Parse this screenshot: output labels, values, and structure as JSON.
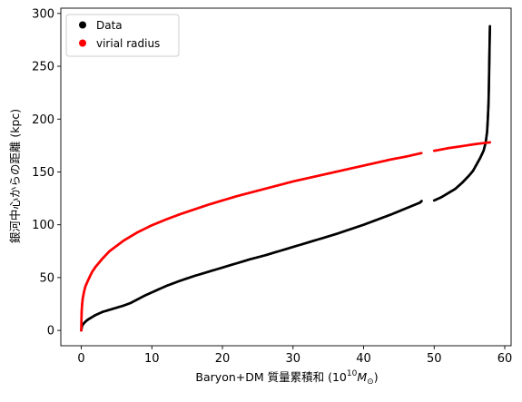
{
  "chart_data": {
    "type": "scatter",
    "xlabel": "Baryon+DM 質量累積和 (10",
    "xlabel_exp": "10",
    "xlabel_tail": "M",
    "xlabel_sub": "⊙",
    "xlabel_close": ")",
    "ylabel": "銀河中心からの距離 (kpc)",
    "xlim": [
      -2.9,
      60.9
    ],
    "ylim": [
      -14.5,
      305
    ],
    "xticks": [
      0,
      10,
      20,
      30,
      40,
      50,
      60
    ],
    "yticks": [
      0,
      50,
      100,
      150,
      200,
      250,
      300
    ],
    "legend_position": "upper-left",
    "grid": false,
    "series": [
      {
        "name": "Data",
        "color": "#000000",
        "marker": "dot",
        "points": [
          [
            0.0,
            0
          ],
          [
            0.05,
            2
          ],
          [
            0.1,
            4
          ],
          [
            0.2,
            5.5
          ],
          [
            0.4,
            7
          ],
          [
            0.7,
            9
          ],
          [
            1.0,
            10.5
          ],
          [
            1.5,
            12.5
          ],
          [
            2.0,
            14.5
          ],
          [
            3.0,
            17.5
          ],
          [
            4.0,
            19.5
          ],
          [
            5.0,
            21.5
          ],
          [
            6.0,
            23.5
          ],
          [
            7.0,
            26
          ],
          [
            8.0,
            29.5
          ],
          [
            9.0,
            33
          ],
          [
            10.0,
            36
          ],
          [
            12.0,
            42
          ],
          [
            14.0,
            47
          ],
          [
            16.0,
            51.5
          ],
          [
            18.0,
            55.5
          ],
          [
            20.0,
            59.5
          ],
          [
            22.0,
            63.5
          ],
          [
            24.0,
            67.5
          ],
          [
            26.0,
            71
          ],
          [
            28.0,
            75
          ],
          [
            30.0,
            79
          ],
          [
            32.0,
            83
          ],
          [
            34.0,
            87
          ],
          [
            36.0,
            91
          ],
          [
            38.0,
            95.5
          ],
          [
            40.0,
            100
          ],
          [
            42.0,
            105
          ],
          [
            44.0,
            110
          ],
          [
            46.0,
            115.5
          ],
          [
            48.0,
            121
          ],
          [
            48.3,
            123
          ],
          [
            50.0,
            123
          ],
          [
            51.0,
            126
          ],
          [
            52.0,
            130
          ],
          [
            53.0,
            134
          ],
          [
            54.0,
            140
          ],
          [
            55.0,
            147
          ],
          [
            55.5,
            151
          ],
          [
            56.0,
            157
          ],
          [
            56.5,
            163
          ],
          [
            57.0,
            170
          ],
          [
            57.3,
            178
          ],
          [
            57.5,
            188
          ],
          [
            57.6,
            200
          ],
          [
            57.7,
            215
          ],
          [
            57.75,
            230
          ],
          [
            57.8,
            250
          ],
          [
            57.85,
            270
          ],
          [
            57.9,
            288
          ]
        ]
      },
      {
        "name": "virial radius",
        "color": "#ff0000",
        "marker": "dot",
        "points": [
          [
            0.0,
            0
          ],
          [
            0.02,
            10
          ],
          [
            0.05,
            17
          ],
          [
            0.1,
            23
          ],
          [
            0.2,
            30
          ],
          [
            0.4,
            37
          ],
          [
            0.6,
            42
          ],
          [
            1.0,
            48
          ],
          [
            1.5,
            55
          ],
          [
            2.0,
            60
          ],
          [
            3.0,
            68
          ],
          [
            4.0,
            75
          ],
          [
            5.0,
            80
          ],
          [
            6.0,
            85
          ],
          [
            7.0,
            89
          ],
          [
            8.0,
            93
          ],
          [
            10.0,
            99.5
          ],
          [
            12.0,
            105
          ],
          [
            14.0,
            110
          ],
          [
            16.0,
            114.5
          ],
          [
            18.0,
            119
          ],
          [
            20.0,
            123
          ],
          [
            22.0,
            127
          ],
          [
            24.0,
            130.5
          ],
          [
            26.0,
            134
          ],
          [
            28.0,
            137.5
          ],
          [
            30.0,
            141
          ],
          [
            32.0,
            144
          ],
          [
            34.0,
            147
          ],
          [
            36.0,
            150
          ],
          [
            38.0,
            153
          ],
          [
            40.0,
            156
          ],
          [
            42.0,
            159
          ],
          [
            44.0,
            162
          ],
          [
            46.0,
            164.5
          ],
          [
            48.3,
            168
          ],
          [
            50.0,
            170
          ],
          [
            52.0,
            172.5
          ],
          [
            54.0,
            174.5
          ],
          [
            56.0,
            176.5
          ],
          [
            57.9,
            178
          ]
        ]
      }
    ]
  }
}
